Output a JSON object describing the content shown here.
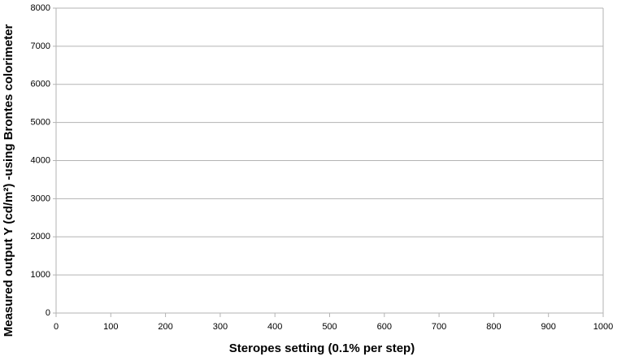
{
  "chart_data": {
    "type": "line",
    "x_label": "Steropes setting (0.1% per step)",
    "y_label": "Measured output  Y (cd/m²) -using Brontes colorimeter",
    "xlim": [
      0,
      1000
    ],
    "xticks": [
      0,
      100,
      200,
      300,
      400,
      500,
      600,
      700,
      800,
      900,
      1000
    ],
    "ylim": [
      0,
      8000
    ],
    "yticks": [
      0,
      1000,
      2000,
      3000,
      4000,
      5000,
      6000,
      7000,
      8000
    ],
    "grid": true
  }
}
